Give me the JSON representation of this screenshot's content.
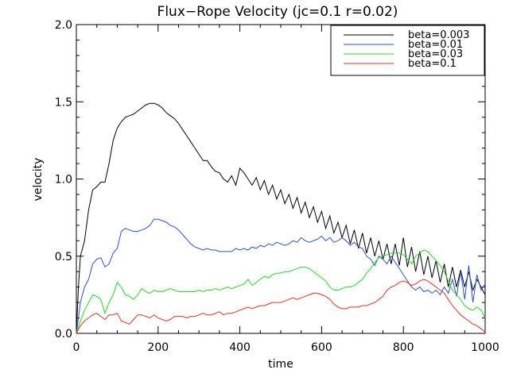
{
  "chart_data": {
    "type": "line",
    "title": "Flux−Rope Velocity (jc=0.1 r=0.02)",
    "xlabel": "time",
    "ylabel": "velocity",
    "xlim": [
      0,
      1000
    ],
    "ylim": [
      0.0,
      2.0
    ],
    "xticks": [
      0,
      200,
      400,
      600,
      800,
      1000
    ],
    "yticks": [
      0.0,
      0.5,
      1.0,
      1.5,
      2.0
    ],
    "xtick_labels": [
      "0",
      "200",
      "400",
      "600",
      "800",
      "1000"
    ],
    "ytick_labels": [
      "0.0",
      "0.5",
      "1.0",
      "1.5",
      "2.0"
    ],
    "grid": false,
    "legend_position": "top-right",
    "series": [
      {
        "name": "beta=0.003",
        "color": "#000000",
        "x": [
          0,
          5,
          10,
          20,
          30,
          40,
          50,
          60,
          70,
          80,
          90,
          100,
          110,
          120,
          130,
          140,
          150,
          160,
          170,
          180,
          190,
          200,
          210,
          220,
          230,
          240,
          250,
          260,
          270,
          280,
          290,
          300,
          310,
          320,
          330,
          340,
          350,
          360,
          370,
          380,
          390,
          400,
          410,
          420,
          430,
          440,
          450,
          460,
          470,
          480,
          490,
          500,
          510,
          520,
          530,
          540,
          550,
          560,
          570,
          580,
          590,
          600,
          610,
          620,
          630,
          640,
          650,
          660,
          670,
          680,
          690,
          700,
          710,
          720,
          730,
          740,
          750,
          760,
          770,
          780,
          790,
          800,
          810,
          820,
          830,
          840,
          850,
          860,
          870,
          880,
          890,
          900,
          910,
          920,
          930,
          940,
          950,
          960,
          970,
          980,
          990,
          1000
        ],
        "values": [
          0.0,
          0.3,
          0.5,
          0.6,
          0.8,
          0.93,
          0.95,
          0.98,
          0.98,
          1.1,
          1.25,
          1.33,
          1.37,
          1.4,
          1.41,
          1.42,
          1.44,
          1.46,
          1.48,
          1.49,
          1.49,
          1.48,
          1.46,
          1.43,
          1.41,
          1.39,
          1.36,
          1.32,
          1.28,
          1.24,
          1.2,
          1.16,
          1.12,
          1.12,
          1.08,
          1.05,
          1.04,
          1.0,
          0.98,
          1.02,
          0.96,
          1.07,
          1.04,
          1.0,
          0.96,
          1.01,
          0.93,
          0.99,
          0.9,
          0.96,
          0.87,
          0.93,
          0.84,
          0.9,
          0.81,
          0.88,
          0.78,
          0.85,
          0.75,
          0.82,
          0.72,
          0.79,
          0.68,
          0.76,
          0.65,
          0.72,
          0.62,
          0.7,
          0.58,
          0.67,
          0.55,
          0.65,
          0.52,
          0.62,
          0.5,
          0.6,
          0.48,
          0.58,
          0.45,
          0.58,
          0.44,
          0.62,
          0.43,
          0.56,
          0.4,
          0.53,
          0.38,
          0.5,
          0.36,
          0.47,
          0.33,
          0.45,
          0.3,
          0.43,
          0.3,
          0.41,
          0.3,
          0.4,
          0.28,
          0.35,
          0.3,
          0.25
        ]
      },
      {
        "name": "beta=0.01",
        "color": "#2a52d6",
        "x": [
          0,
          5,
          10,
          20,
          30,
          40,
          50,
          60,
          70,
          80,
          90,
          100,
          110,
          120,
          130,
          140,
          150,
          160,
          170,
          180,
          190,
          200,
          210,
          220,
          230,
          240,
          250,
          260,
          270,
          280,
          290,
          300,
          310,
          320,
          330,
          340,
          350,
          360,
          370,
          380,
          390,
          400,
          410,
          420,
          430,
          440,
          450,
          460,
          470,
          480,
          490,
          500,
          510,
          520,
          530,
          540,
          550,
          560,
          570,
          580,
          590,
          600,
          610,
          620,
          630,
          640,
          650,
          660,
          670,
          680,
          690,
          700,
          710,
          720,
          730,
          740,
          750,
          760,
          770,
          780,
          790,
          800,
          810,
          820,
          830,
          840,
          850,
          860,
          870,
          880,
          890,
          900,
          910,
          920,
          930,
          940,
          950,
          960,
          970,
          980,
          990,
          1000
        ],
        "values": [
          0.0,
          0.1,
          0.2,
          0.3,
          0.35,
          0.45,
          0.48,
          0.49,
          0.43,
          0.45,
          0.52,
          0.55,
          0.66,
          0.68,
          0.67,
          0.66,
          0.66,
          0.67,
          0.68,
          0.7,
          0.74,
          0.74,
          0.73,
          0.72,
          0.7,
          0.69,
          0.67,
          0.64,
          0.61,
          0.58,
          0.56,
          0.55,
          0.54,
          0.55,
          0.54,
          0.54,
          0.53,
          0.53,
          0.53,
          0.53,
          0.55,
          0.54,
          0.55,
          0.54,
          0.56,
          0.55,
          0.57,
          0.56,
          0.58,
          0.57,
          0.59,
          0.58,
          0.57,
          0.58,
          0.6,
          0.59,
          0.62,
          0.6,
          0.59,
          0.6,
          0.61,
          0.63,
          0.6,
          0.62,
          0.59,
          0.6,
          0.62,
          0.6,
          0.57,
          0.59,
          0.56,
          0.55,
          0.5,
          0.48,
          0.44,
          0.5,
          0.48,
          0.45,
          0.5,
          0.46,
          0.42,
          0.38,
          0.34,
          0.3,
          0.28,
          0.3,
          0.27,
          0.28,
          0.26,
          0.28,
          0.25,
          0.3,
          0.26,
          0.35,
          0.24,
          0.4,
          0.22,
          0.44,
          0.2,
          0.38,
          0.28,
          0.32
        ]
      },
      {
        "name": "beta=0.03",
        "color": "#22dd22",
        "x": [
          0,
          10,
          20,
          30,
          40,
          50,
          60,
          70,
          80,
          90,
          100,
          110,
          120,
          130,
          140,
          150,
          160,
          170,
          180,
          190,
          200,
          210,
          220,
          230,
          240,
          250,
          260,
          270,
          280,
          290,
          300,
          310,
          320,
          330,
          340,
          350,
          360,
          370,
          380,
          390,
          400,
          410,
          420,
          430,
          440,
          450,
          460,
          470,
          480,
          490,
          500,
          510,
          520,
          530,
          540,
          550,
          560,
          570,
          580,
          590,
          600,
          610,
          620,
          630,
          640,
          650,
          660,
          670,
          680,
          690,
          700,
          710,
          720,
          730,
          740,
          750,
          760,
          770,
          780,
          790,
          800,
          810,
          820,
          830,
          840,
          850,
          860,
          870,
          880,
          890,
          900,
          910,
          920,
          930,
          940,
          950,
          960,
          970,
          980,
          990,
          1000
        ],
        "values": [
          0.0,
          0.08,
          0.15,
          0.2,
          0.25,
          0.24,
          0.22,
          0.13,
          0.2,
          0.25,
          0.33,
          0.3,
          0.25,
          0.24,
          0.22,
          0.25,
          0.29,
          0.27,
          0.26,
          0.28,
          0.27,
          0.27,
          0.28,
          0.29,
          0.28,
          0.27,
          0.27,
          0.27,
          0.27,
          0.27,
          0.28,
          0.27,
          0.28,
          0.28,
          0.29,
          0.28,
          0.29,
          0.3,
          0.29,
          0.3,
          0.31,
          0.32,
          0.35,
          0.31,
          0.33,
          0.35,
          0.37,
          0.36,
          0.38,
          0.39,
          0.39,
          0.4,
          0.4,
          0.41,
          0.42,
          0.43,
          0.43,
          0.42,
          0.4,
          0.38,
          0.36,
          0.34,
          0.3,
          0.28,
          0.28,
          0.29,
          0.3,
          0.3,
          0.31,
          0.33,
          0.35,
          0.39,
          0.42,
          0.46,
          0.49,
          0.5,
          0.51,
          0.52,
          0.52,
          0.52,
          0.51,
          0.48,
          0.45,
          0.5,
          0.52,
          0.54,
          0.53,
          0.5,
          0.47,
          0.44,
          0.4,
          0.34,
          0.28,
          0.25,
          0.22,
          0.18,
          0.16,
          0.15,
          0.17,
          0.15,
          0.1
        ]
      },
      {
        "name": "beta=0.1",
        "color": "#e8321e",
        "x": [
          0,
          10,
          20,
          30,
          40,
          50,
          60,
          70,
          80,
          90,
          100,
          110,
          120,
          130,
          140,
          150,
          160,
          170,
          180,
          190,
          200,
          210,
          220,
          230,
          240,
          250,
          260,
          270,
          280,
          290,
          300,
          310,
          320,
          330,
          340,
          350,
          360,
          370,
          380,
          390,
          400,
          410,
          420,
          430,
          440,
          450,
          460,
          470,
          480,
          490,
          500,
          510,
          520,
          530,
          540,
          550,
          560,
          570,
          580,
          590,
          600,
          610,
          620,
          630,
          640,
          650,
          660,
          670,
          680,
          690,
          700,
          710,
          720,
          730,
          740,
          750,
          760,
          770,
          780,
          790,
          800,
          810,
          820,
          830,
          840,
          850,
          860,
          870,
          880,
          890,
          900,
          910,
          920,
          930,
          940,
          950,
          960,
          970,
          980,
          990,
          1000
        ],
        "values": [
          0.0,
          0.05,
          0.08,
          0.1,
          0.12,
          0.13,
          0.11,
          0.09,
          0.12,
          0.12,
          0.13,
          0.08,
          0.07,
          0.06,
          0.09,
          0.12,
          0.12,
          0.11,
          0.1,
          0.12,
          0.1,
          0.09,
          0.08,
          0.09,
          0.11,
          0.11,
          0.11,
          0.1,
          0.11,
          0.11,
          0.12,
          0.13,
          0.12,
          0.12,
          0.13,
          0.14,
          0.12,
          0.13,
          0.13,
          0.14,
          0.15,
          0.16,
          0.17,
          0.16,
          0.17,
          0.18,
          0.18,
          0.19,
          0.2,
          0.2,
          0.2,
          0.21,
          0.22,
          0.23,
          0.22,
          0.23,
          0.24,
          0.25,
          0.26,
          0.26,
          0.25,
          0.24,
          0.22,
          0.19,
          0.17,
          0.16,
          0.16,
          0.17,
          0.17,
          0.17,
          0.18,
          0.18,
          0.19,
          0.2,
          0.22,
          0.24,
          0.28,
          0.3,
          0.31,
          0.33,
          0.34,
          0.33,
          0.31,
          0.32,
          0.34,
          0.35,
          0.34,
          0.32,
          0.3,
          0.28,
          0.26,
          0.22,
          0.18,
          0.15,
          0.12,
          0.1,
          0.08,
          0.06,
          0.05,
          0.03,
          0.01
        ]
      }
    ]
  }
}
